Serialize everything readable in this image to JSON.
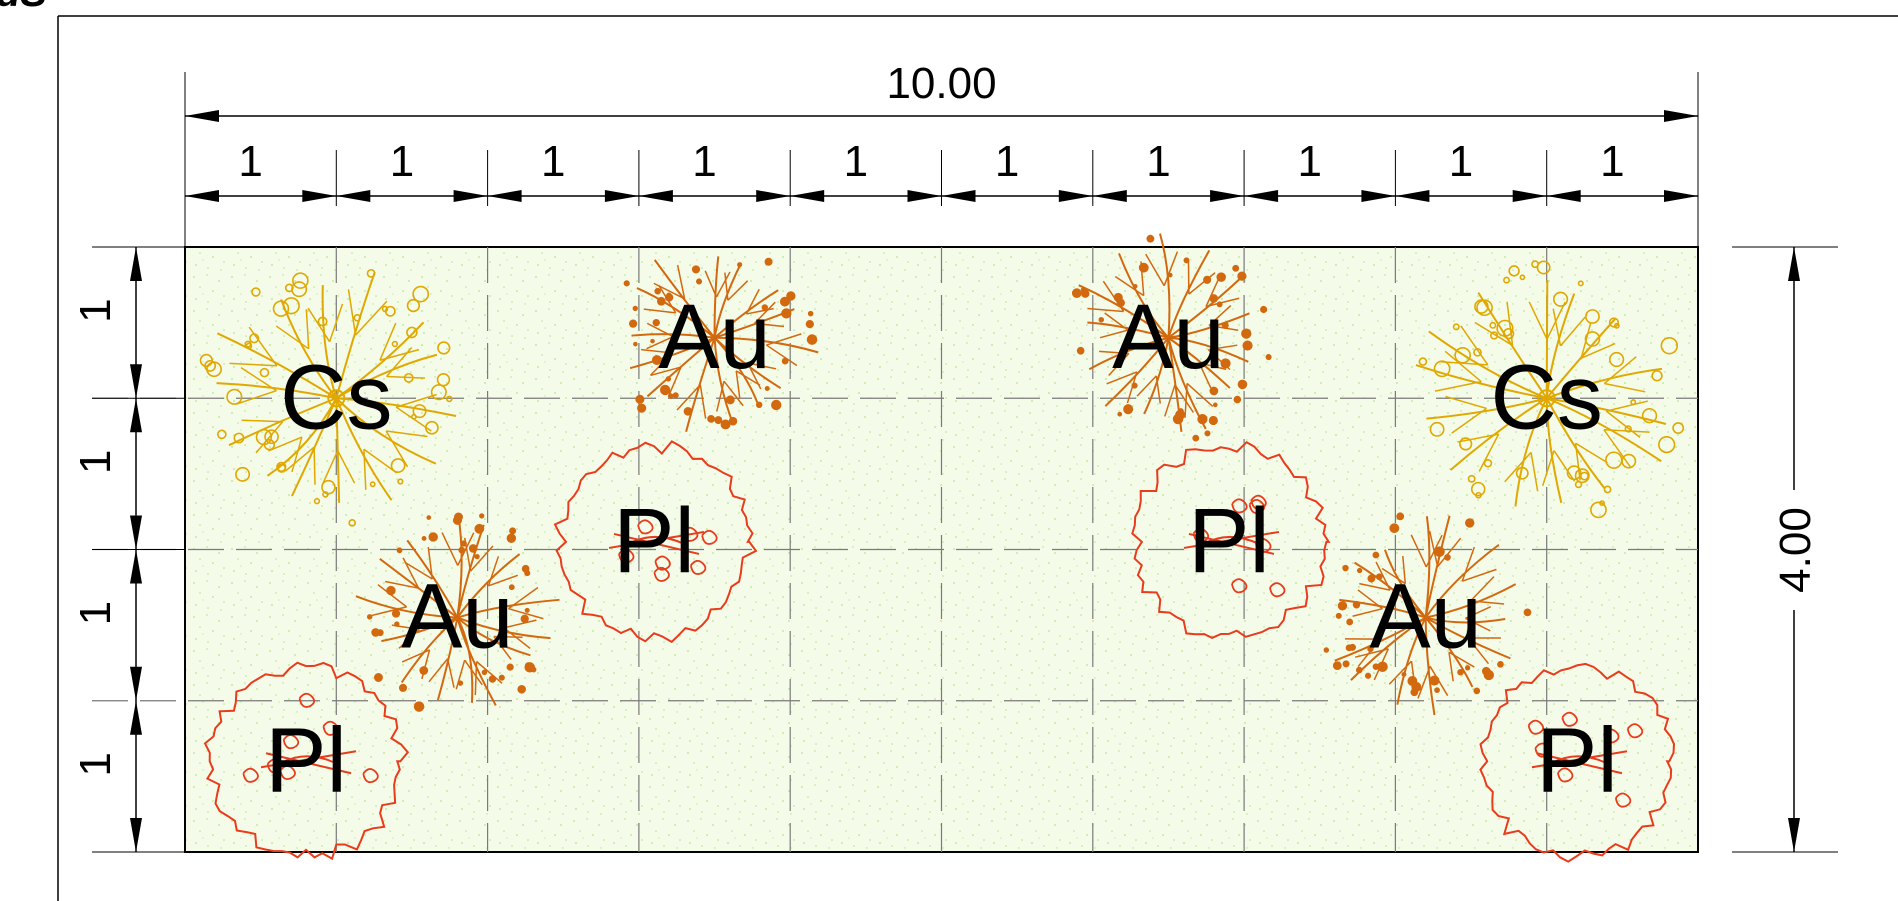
{
  "corner_text": "dS",
  "plan": {
    "overall_width_label": "10.00",
    "overall_height_label": "4.00",
    "column_labels": [
      "1",
      "1",
      "1",
      "1",
      "1",
      "1",
      "1",
      "1",
      "1",
      "1"
    ],
    "row_labels": [
      "1",
      "1",
      "1",
      "1"
    ],
    "colors": {
      "ground_fill": "#f4fbe9",
      "ground_speckle": "#b6e38c",
      "grid_line": "#7a7a7a",
      "Cs": "#e0a800",
      "Au": "#d2690f",
      "Pl": "#e83c1c"
    },
    "plants": [
      {
        "code": "Cs",
        "symbol": "branching-tree-with-circles",
        "cell_x": 1.0,
        "cell_y": 1.0
      },
      {
        "code": "Au",
        "symbol": "branching-tree-with-dots",
        "cell_x": 3.5,
        "cell_y": 0.6
      },
      {
        "code": "Pl",
        "symbol": "wavy-outline-canopy",
        "cell_x": 3.1,
        "cell_y": 1.95
      },
      {
        "code": "Au",
        "symbol": "branching-tree-with-dots",
        "cell_x": 1.8,
        "cell_y": 2.45
      },
      {
        "code": "Pl",
        "symbol": "wavy-outline-canopy",
        "cell_x": 0.8,
        "cell_y": 3.4
      },
      {
        "code": "Au",
        "symbol": "branching-tree-with-dots",
        "cell_x": 6.5,
        "cell_y": 0.6
      },
      {
        "code": "Pl",
        "symbol": "wavy-outline-canopy",
        "cell_x": 6.9,
        "cell_y": 1.95
      },
      {
        "code": "Cs",
        "symbol": "branching-tree-with-circles",
        "cell_x": 9.0,
        "cell_y": 1.0
      },
      {
        "code": "Au",
        "symbol": "branching-tree-with-dots",
        "cell_x": 8.2,
        "cell_y": 2.45
      },
      {
        "code": "Pl",
        "symbol": "wavy-outline-canopy",
        "cell_x": 9.2,
        "cell_y": 3.4
      }
    ]
  }
}
